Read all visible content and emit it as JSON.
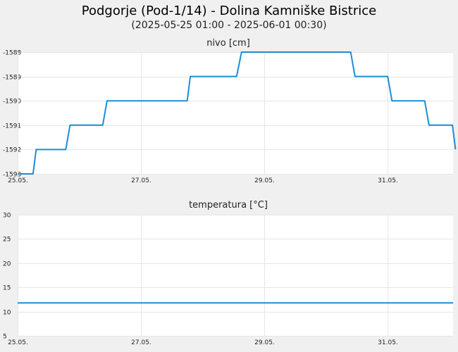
{
  "header": {
    "title": "Podgorje (Pod-1/14) - Dolina Kamniške Bistrice",
    "subtitle": "(2025-05-25 01:00 - 2025-06-01 00:30)"
  },
  "colors": {
    "series": "#1a8fd6",
    "grid": "#e6e6e6",
    "background": "#f0f0f0",
    "plot": "#ffffff"
  },
  "chart_data": [
    {
      "type": "line",
      "title": "nivo [cm]",
      "xlabel": "",
      "ylabel": "",
      "xlim": [
        0,
        7.06
      ],
      "ylim": [
        -1593,
        -1588
      ],
      "x_ticks": [
        {
          "x": 0,
          "label": "25.05."
        },
        {
          "x": 2,
          "label": "27.05."
        },
        {
          "x": 4,
          "label": "29.05."
        },
        {
          "x": 6,
          "label": "31.05."
        }
      ],
      "y_ticks": [
        -1593,
        -1592,
        -1591,
        -1590,
        -1589,
        -1588
      ],
      "grid": true,
      "series": [
        {
          "x": [
            0,
            0.25,
            0.3,
            0.78,
            0.85,
            1.38,
            1.45,
            2.05,
            2.1,
            2.1,
            2.75,
            2.8,
            3.55,
            3.63,
            5.4,
            5.47,
            5.47,
            6.0,
            6.07,
            6.6,
            6.67,
            7.05,
            7.1
          ],
          "y": [
            -1593,
            -1593,
            -1592,
            -1592,
            -1591,
            -1591,
            -1590,
            -1590,
            -1590,
            -1590,
            -1590,
            -1589,
            -1589,
            -1588,
            -1588,
            -1589,
            -1589,
            -1589,
            -1590,
            -1590,
            -1591,
            -1591,
            -1592
          ]
        }
      ]
    },
    {
      "type": "line",
      "title": "temperatura [°C]",
      "xlabel": "",
      "ylabel": "",
      "xlim": [
        0,
        7.06
      ],
      "ylim": [
        5,
        30
      ],
      "x_ticks": [
        {
          "x": 0,
          "label": "25.05."
        },
        {
          "x": 2,
          "label": "27.05."
        },
        {
          "x": 4,
          "label": "29.05."
        },
        {
          "x": 6,
          "label": "31.05."
        }
      ],
      "y_ticks": [
        5,
        10,
        15,
        20,
        25,
        30
      ],
      "grid": true,
      "series": [
        {
          "x": [
            0,
            7.06
          ],
          "y": [
            11.8,
            11.8
          ]
        }
      ]
    }
  ]
}
